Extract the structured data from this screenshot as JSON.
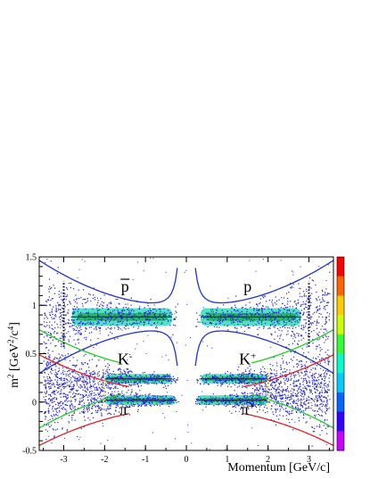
{
  "chart_data": {
    "type": "scatter",
    "xlabel": "Momentum [GeV/c]",
    "ylabel_base": "m",
    "ylabel_sup": "2",
    "ylabel_rest": " [GeV",
    "ylabel_sup2": "2",
    "ylabel_rest2": "/c",
    "ylabel_sup3": "4",
    "ylabel_end": "]",
    "xlim": [
      -3.6,
      3.6
    ],
    "ylim": [
      -0.5,
      1.5
    ],
    "x_ticks": [
      -3,
      -2,
      -1,
      0,
      1,
      2,
      3
    ],
    "x_tick_labels": [
      "-3",
      "-2",
      "-1",
      "0",
      "1",
      "2",
      "3"
    ],
    "y_ticks": [
      -0.5,
      0,
      0.5,
      1,
      1.5
    ],
    "y_tick_labels": [
      "-0.5",
      "0",
      "0.5",
      "1",
      "1.5"
    ],
    "grid": false,
    "colorbar": true,
    "particle_labels": [
      {
        "id": "pbar",
        "text": "p",
        "overline": true,
        "sup": "",
        "x": -1.5,
        "y": 1.14
      },
      {
        "id": "p",
        "text": "p",
        "overline": false,
        "sup": "",
        "x": 1.5,
        "y": 1.14
      },
      {
        "id": "kminus",
        "text": "K",
        "overline": false,
        "sup": "-",
        "x": -1.5,
        "y": 0.39
      },
      {
        "id": "kplus",
        "text": "K",
        "overline": false,
        "sup": "+",
        "x": 1.5,
        "y": 0.39
      },
      {
        "id": "piminus",
        "text": "π",
        "overline": false,
        "sup": "-",
        "x": -1.5,
        "y": -0.13
      },
      {
        "id": "piplus",
        "text": "π",
        "overline": false,
        "sup": "+",
        "x": 1.5,
        "y": -0.13
      }
    ],
    "bands": [
      {
        "name": "proton",
        "m2": 0.88,
        "color": "#2233cc",
        "core_range": [
          0.35,
          2.8
        ]
      },
      {
        "name": "kaon",
        "m2": 0.24,
        "color": "#22cc22",
        "core_range": [
          0.35,
          2.0
        ]
      },
      {
        "name": "pion",
        "m2": 0.02,
        "color": "#dd2222",
        "core_range": [
          0.25,
          2.0
        ]
      }
    ],
    "cut_lines": [
      {
        "x": -3.0,
        "y0": 0.57,
        "y1": 1.25
      },
      {
        "x": 3.0,
        "y0": 0.57,
        "y1": 1.25
      },
      {
        "x": -2.0,
        "y0": -0.05,
        "y1": 0.35,
        "color": "#ffff33"
      },
      {
        "x": 2.0,
        "y0": -0.05,
        "y1": 0.35,
        "color": "#ffff33"
      }
    ],
    "colors": {
      "frame": "#000000",
      "proton_curve": "#2233cc",
      "kaon_curve": "#22cc22",
      "pion_curve": "#dd2222",
      "scatter": "#2222cc"
    },
    "colorbar_stops": [
      "#ff0000",
      "#ff6600",
      "#ffcc00",
      "#ccff00",
      "#33ff33",
      "#00ffcc",
      "#00ccff",
      "#0066ff",
      "#3300ff",
      "#cc00ff"
    ]
  }
}
